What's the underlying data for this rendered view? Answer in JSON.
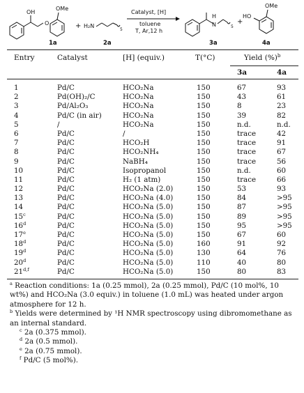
{
  "scheme": {
    "oh": "OH",
    "ome_left": "OMe",
    "ome_right": "OMe",
    "ho": "HO",
    "h2n": "H₂N",
    "n_sub": "5",
    "n_sub_product": "5",
    "h": "H",
    "nh": "N",
    "plus1": "+",
    "plus2": "+",
    "cond_catalyst": "Catalyst, [H]",
    "cond_solvent": "toluene",
    "cond_conditions": "T, Ar,12 h",
    "label_1a": "1a",
    "label_2a": "2a",
    "label_3a": "3a",
    "label_4a": "4a"
  },
  "header": {
    "entry": "Entry",
    "catalyst": "Catalyst",
    "h_equiv": "[H] (equiv.)",
    "temp": "T(°C)",
    "yield": "Yield (%)",
    "yield_sup": "b",
    "col3a": "3a",
    "col4a": "4a"
  },
  "rows": [
    {
      "entry": "1",
      "sup": "",
      "cat": "Pd/C",
      "h": "HCO₂Na",
      "t": "150",
      "y3": "67",
      "y4": "93"
    },
    {
      "entry": "2",
      "sup": "",
      "cat": "Pd(OH)₂/C",
      "h": "HCO₂Na",
      "t": "150",
      "y3": "43",
      "y4": "61"
    },
    {
      "entry": "3",
      "sup": "",
      "cat": "Pd/Al₂O₃",
      "h": "HCO₂Na",
      "t": "150",
      "y3": "8",
      "y4": "23"
    },
    {
      "entry": "4",
      "sup": "",
      "cat": "Pd/C (in air)",
      "h": "HCO₂Na",
      "t": "150",
      "y3": "39",
      "y4": "82"
    },
    {
      "entry": "5",
      "sup": "",
      "cat": "/",
      "h": "HCO₂Na",
      "t": "150",
      "y3": "n.d.",
      "y4": "n.d."
    },
    {
      "entry": "6",
      "sup": "",
      "cat": "Pd/C",
      "h": "/",
      "t": "150",
      "y3": "trace",
      "y4": "42"
    },
    {
      "entry": "7",
      "sup": "",
      "cat": "Pd/C",
      "h": "HCO₂H",
      "t": "150",
      "y3": "trace",
      "y4": "91"
    },
    {
      "entry": "8",
      "sup": "",
      "cat": "Pd/C",
      "h": "HCO₂NH₄",
      "t": "150",
      "y3": "trace",
      "y4": "67"
    },
    {
      "entry": "9",
      "sup": "",
      "cat": "Pd/C",
      "h": "NaBH₄",
      "t": "150",
      "y3": "trace",
      "y4": "56"
    },
    {
      "entry": "10",
      "sup": "",
      "cat": "Pd/C",
      "h": "Isopropanol",
      "t": "150",
      "y3": "n.d.",
      "y4": "60"
    },
    {
      "entry": "11",
      "sup": "",
      "cat": "Pd/C",
      "h": "H₂ (1 atm)",
      "t": "150",
      "y3": "trace",
      "y4": "66"
    },
    {
      "entry": "12",
      "sup": "",
      "cat": "Pd/C",
      "h": "HCO₂Na (2.0)",
      "t": "150",
      "y3": "53",
      "y4": "93"
    },
    {
      "entry": "13",
      "sup": "",
      "cat": "Pd/C",
      "h": "HCO₂Na (4.0)",
      "t": "150",
      "y3": "84",
      "y4": ">95"
    },
    {
      "entry": "14",
      "sup": "",
      "cat": "Pd/C",
      "h": "HCO₂Na (5.0)",
      "t": "150",
      "y3": "87",
      "y4": ">95"
    },
    {
      "entry": "15",
      "sup": "c",
      "cat": "Pd/C",
      "h": "HCO₂Na (5.0)",
      "t": "150",
      "y3": "89",
      "y4": ">95"
    },
    {
      "entry": "16",
      "sup": "d",
      "cat": "Pd/C",
      "h": "HCO₂Na (5.0)",
      "t": "150",
      "y3": "95",
      "y4": ">95"
    },
    {
      "entry": "17",
      "sup": "e",
      "cat": "Pd/C",
      "h": "HCO₂Na (5.0)",
      "t": "150",
      "y3": "67",
      "y4": "60"
    },
    {
      "entry": "18",
      "sup": "d",
      "cat": "Pd/C",
      "h": "HCO₂Na (5.0)",
      "t": "160",
      "y3": "91",
      "y4": "92"
    },
    {
      "entry": "19",
      "sup": "d",
      "cat": "Pd/C",
      "h": "HCO₂Na (5.0)",
      "t": "130",
      "y3": "64",
      "y4": "76"
    },
    {
      "entry": "20",
      "sup": "d",
      "cat": "Pd/C",
      "h": "HCO₂Na (5.0)",
      "t": "110",
      "y3": "40",
      "y4": "80"
    },
    {
      "entry": "21",
      "sup": "d,f",
      "cat": "Pd/C",
      "h": "HCO₂Na (5.0)",
      "t": "150",
      "y3": "80",
      "y4": "83"
    }
  ],
  "notes": [
    {
      "mark": "a",
      "text": "Reaction conditions: 1a (0.25 mmol), 2a (0.25 mmol), Pd/C (10 mol%, 10 wt%) and HCO₂Na (3.0 equiv.) in toluene (1.0 mL) was heated under argon atmosphere for 12 h."
    },
    {
      "mark": "b",
      "text": "Yields were determined by ¹H NMR spectroscopy using dibromomethane as an internal standard."
    },
    {
      "mark": "c",
      "text": "2a (0.375 mmol)."
    },
    {
      "mark": "d",
      "text": "2a (0.5 mmol)."
    },
    {
      "mark": "e",
      "text": "2a (0.75 mmol)."
    },
    {
      "mark": "f",
      "text": "Pd/C (5 mol%)."
    }
  ]
}
